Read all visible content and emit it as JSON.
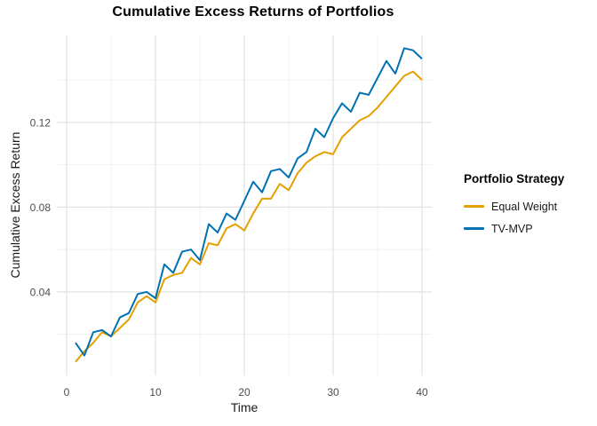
{
  "chart_data": {
    "type": "line",
    "title": "Cumulative Excess Returns of Portfolios",
    "xlabel": "Time",
    "ylabel": "Cumulative Excess Return",
    "legend_title": "Portfolio Strategy",
    "legend_position": "right",
    "background_color": "#FFFFFF",
    "grid": {
      "major_color": "#E3E3E3",
      "minor_color": "#EDEDED",
      "show_minor": true
    },
    "axis_text_color": "#4D4D4D",
    "xlim": [
      -1.1,
      41.1
    ],
    "ylim": [
      0.0006,
      0.161
    ],
    "x_ticks": [
      0,
      10,
      20,
      30,
      40
    ],
    "x_tick_labels": [
      "0",
      "10",
      "20",
      "30",
      "40"
    ],
    "x_minor_ticks": [
      5,
      15,
      25,
      35
    ],
    "y_ticks": [
      0.04,
      0.08,
      0.12
    ],
    "y_tick_labels": [
      "0.04",
      "0.08",
      "0.12"
    ],
    "y_minor_ticks": [
      0.02,
      0.06,
      0.1,
      0.14
    ],
    "x": [
      1,
      2,
      3,
      4,
      5,
      6,
      7,
      8,
      9,
      10,
      11,
      12,
      13,
      14,
      15,
      16,
      17,
      18,
      19,
      20,
      21,
      22,
      23,
      24,
      25,
      26,
      27,
      28,
      29,
      30,
      31,
      32,
      33,
      34,
      35,
      36,
      37,
      38,
      39,
      40
    ],
    "series": [
      {
        "name": "Equal Weight",
        "color": "#E69F00",
        "values": [
          0.007,
          0.012,
          0.016,
          0.021,
          0.019,
          0.023,
          0.027,
          0.035,
          0.038,
          0.035,
          0.046,
          0.048,
          0.049,
          0.056,
          0.053,
          0.063,
          0.062,
          0.07,
          0.072,
          0.069,
          0.077,
          0.084,
          0.084,
          0.091,
          0.088,
          0.096,
          0.101,
          0.104,
          0.106,
          0.105,
          0.113,
          0.117,
          0.121,
          0.123,
          0.127,
          0.132,
          0.137,
          0.142,
          0.144,
          0.14
        ]
      },
      {
        "name": "TV-MVP",
        "color": "#0072B2",
        "values": [
          0.016,
          0.01,
          0.021,
          0.022,
          0.019,
          0.028,
          0.03,
          0.039,
          0.04,
          0.037,
          0.053,
          0.049,
          0.059,
          0.06,
          0.055,
          0.072,
          0.068,
          0.077,
          0.074,
          0.083,
          0.092,
          0.087,
          0.097,
          0.098,
          0.094,
          0.103,
          0.106,
          0.117,
          0.113,
          0.122,
          0.129,
          0.125,
          0.134,
          0.133,
          0.141,
          0.149,
          0.143,
          0.155,
          0.154,
          0.15
        ]
      }
    ]
  }
}
